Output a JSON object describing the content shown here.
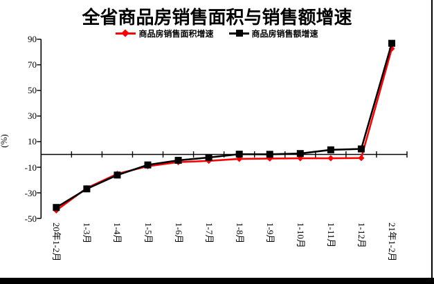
{
  "chart_data": {
    "type": "line",
    "title": "全省商品房销售面积与销售额增速",
    "ylabel": "(%)",
    "ylim": [
      -50,
      90
    ],
    "y_ticks": [
      90,
      70,
      50,
      30,
      10,
      -10,
      -30,
      -50
    ],
    "grid": false,
    "legend_position": "top",
    "categories": [
      "20年1-2月",
      "1-3月",
      "1-4月",
      "1-5月",
      "1-6月",
      "1-7月",
      "1-8月",
      "1-9月",
      "1-10月",
      "1-11月",
      "1-12月",
      "21年1-2月"
    ],
    "series": [
      {
        "name": "商品房销售面积增速",
        "color": "#ff0000",
        "marker": "diamond",
        "values": [
          -43.7,
          -26.3,
          -15.2,
          -9.2,
          -6.0,
          -5.0,
          -3.5,
          -3.2,
          -3.0,
          -3.0,
          -2.8,
          82.6
        ]
      },
      {
        "name": "商品房销售额增速",
        "color": "#000000",
        "marker": "square",
        "values": [
          -41.4,
          -26.9,
          -16.1,
          -8.2,
          -4.6,
          -2.4,
          0.2,
          0.1,
          0.7,
          3.6,
          4.3,
          86.8
        ]
      }
    ]
  }
}
